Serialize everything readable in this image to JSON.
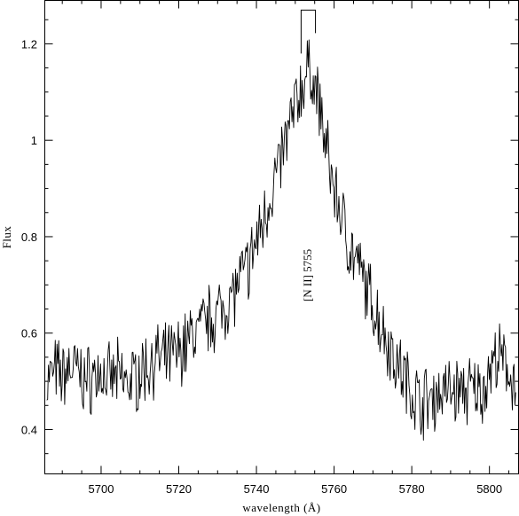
{
  "chart_data": {
    "type": "line",
    "title": "",
    "xlabel": "wavelength (Å)",
    "ylabel": "Flux",
    "xlim": [
      5685.5,
      5807.5
    ],
    "ylim": [
      0.308,
      1.29
    ],
    "x_ticks": [
      5700,
      5720,
      5740,
      5760,
      5780,
      5800
    ],
    "x_tick_labels": [
      "5700",
      "5720",
      "5740",
      "5760",
      "5780",
      "5800"
    ],
    "y_ticks": [
      0.4,
      0.6,
      0.8,
      1.0,
      1.2
    ],
    "y_tick_labels": [
      "0.4",
      "0.6",
      "0.8",
      "1",
      "1.2"
    ],
    "annotation": {
      "text": "[N II] 5755",
      "x": 5754.2,
      "y": 0.72,
      "rotation": "vertical"
    },
    "line_marker": {
      "x_left": 5751.5,
      "x_right": 5755.2,
      "y_top": 1.27,
      "y_bottom": 1.18
    },
    "series": [
      {
        "x": [
          5686,
          5688,
          5690,
          5692,
          5694,
          5696,
          5698,
          5700,
          5702,
          5704,
          5706,
          5708,
          5710,
          5712,
          5714,
          5716,
          5718,
          5720,
          5722,
          5724,
          5726,
          5728,
          5730,
          5732,
          5734,
          5736,
          5738,
          5740,
          5742,
          5744,
          5746,
          5748,
          5750,
          5752,
          5754,
          5756,
          5758,
          5760,
          5762,
          5764,
          5766,
          5768,
          5770,
          5772,
          5774,
          5776,
          5778,
          5780,
          5782,
          5784,
          5786,
          5788,
          5790,
          5792,
          5794,
          5796,
          5798,
          5800,
          5802,
          5804,
          5806
        ],
        "y": [
          0.5,
          0.52,
          0.51,
          0.53,
          0.52,
          0.5,
          0.51,
          0.52,
          0.5,
          0.51,
          0.5,
          0.5,
          0.52,
          0.53,
          0.55,
          0.54,
          0.55,
          0.56,
          0.58,
          0.6,
          0.61,
          0.63,
          0.64,
          0.66,
          0.68,
          0.71,
          0.74,
          0.79,
          0.84,
          0.9,
          0.95,
          1.01,
          1.07,
          1.12,
          1.15,
          1.08,
          0.98,
          0.9,
          0.84,
          0.78,
          0.74,
          0.7,
          0.66,
          0.62,
          0.58,
          0.54,
          0.51,
          0.48,
          0.46,
          0.46,
          0.47,
          0.48,
          0.48,
          0.48,
          0.48,
          0.48,
          0.48,
          0.52,
          0.55,
          0.53,
          0.51
        ]
      }
    ],
    "grid": false,
    "legend": "none"
  }
}
